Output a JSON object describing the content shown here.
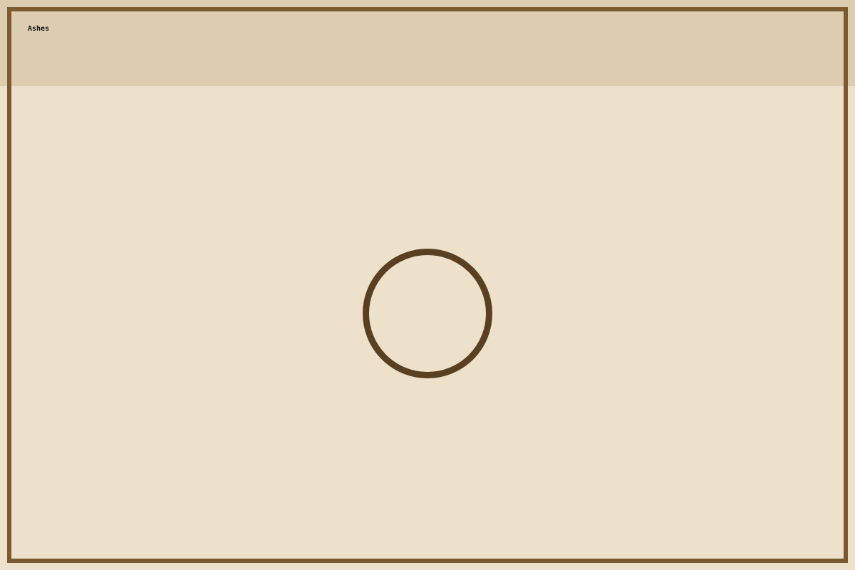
{
  "window": {
    "title": "Ashes"
  },
  "canvas": {
    "center_ring": "circle-button"
  },
  "colors": {
    "background": "#ede1cb",
    "header": "#dccdb0",
    "frame": "#7a5a2e",
    "ring": "#5a4020"
  }
}
